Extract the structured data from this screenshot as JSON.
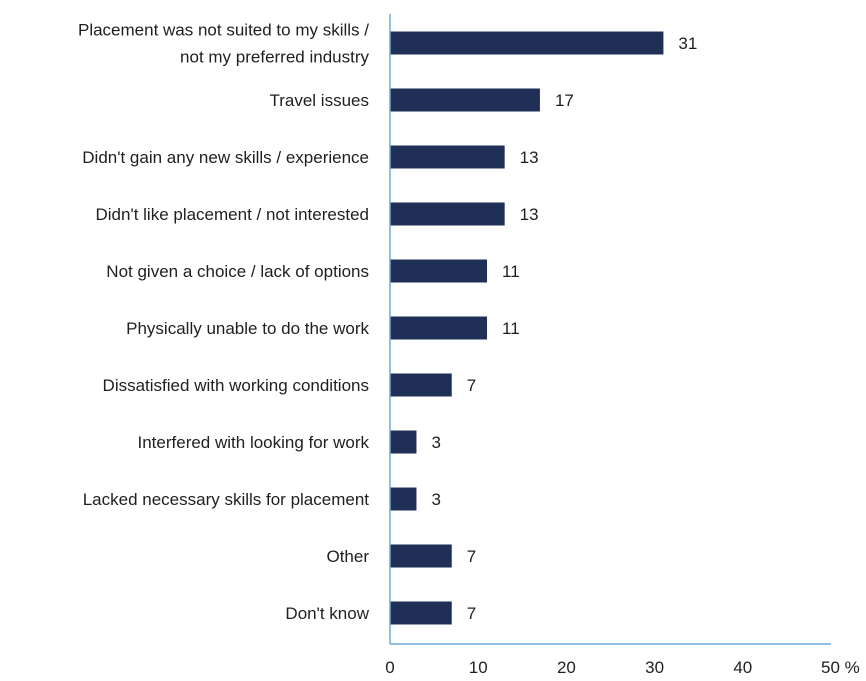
{
  "chart_data": {
    "type": "bar",
    "orientation": "horizontal",
    "categories": [
      [
        "Placement was not suited to my skills /",
        "not my preferred industry"
      ],
      [
        "Travel issues"
      ],
      [
        "Didn't gain any new skills / experience"
      ],
      [
        "Didn't like placement / not interested"
      ],
      [
        "Not given a choice / lack of options"
      ],
      [
        "Physically unable to do the work"
      ],
      [
        "Dissatisfied with working conditions"
      ],
      [
        "Interfered with looking for work"
      ],
      [
        "Lacked necessary skills for placement"
      ],
      [
        "Other"
      ],
      [
        "Don't know"
      ]
    ],
    "values": [
      31,
      17,
      13,
      13,
      11,
      11,
      7,
      3,
      3,
      7,
      7
    ],
    "xlim": [
      0,
      50
    ],
    "x_ticks": [
      "0",
      "10",
      "20",
      "30",
      "40",
      "50 %"
    ],
    "grid": false,
    "legend": "none",
    "colors": {
      "bar": "#1f2f55",
      "axis": "#6fa8dc",
      "text": "#1f1f1f"
    }
  }
}
